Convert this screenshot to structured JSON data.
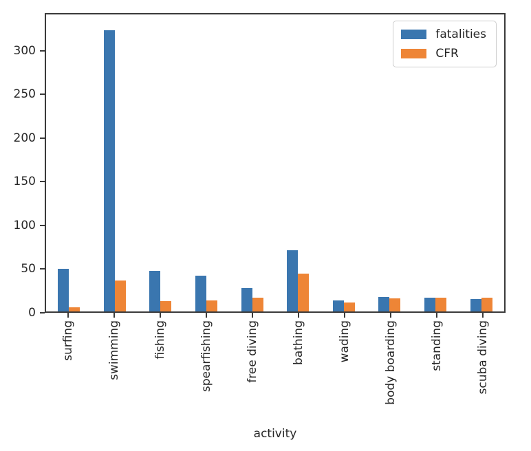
{
  "chart_data": {
    "type": "bar",
    "title": "",
    "xlabel": "activity",
    "ylabel": "",
    "categories": [
      "surfing",
      "swimming",
      "fishing",
      "spearfishing",
      "free diving",
      "bathing",
      "wading",
      "body boarding",
      "standing",
      "scuba diving"
    ],
    "series": [
      {
        "name": "fatalities",
        "color": "#3a76af",
        "values": [
          49,
          325,
          47,
          41,
          27,
          71,
          13,
          17,
          16,
          14
        ]
      },
      {
        "name": "CFR",
        "color": "#ee8536",
        "values": [
          5,
          36,
          12,
          13,
          16,
          44,
          10,
          15,
          16,
          16
        ]
      }
    ],
    "ylim": [
      0,
      343
    ],
    "yticks": [
      0,
      50,
      100,
      150,
      200,
      250,
      300
    ],
    "grid": false,
    "legend_position": "upper right",
    "axis_color": "#3a3a3a",
    "text_color": "#262626"
  }
}
